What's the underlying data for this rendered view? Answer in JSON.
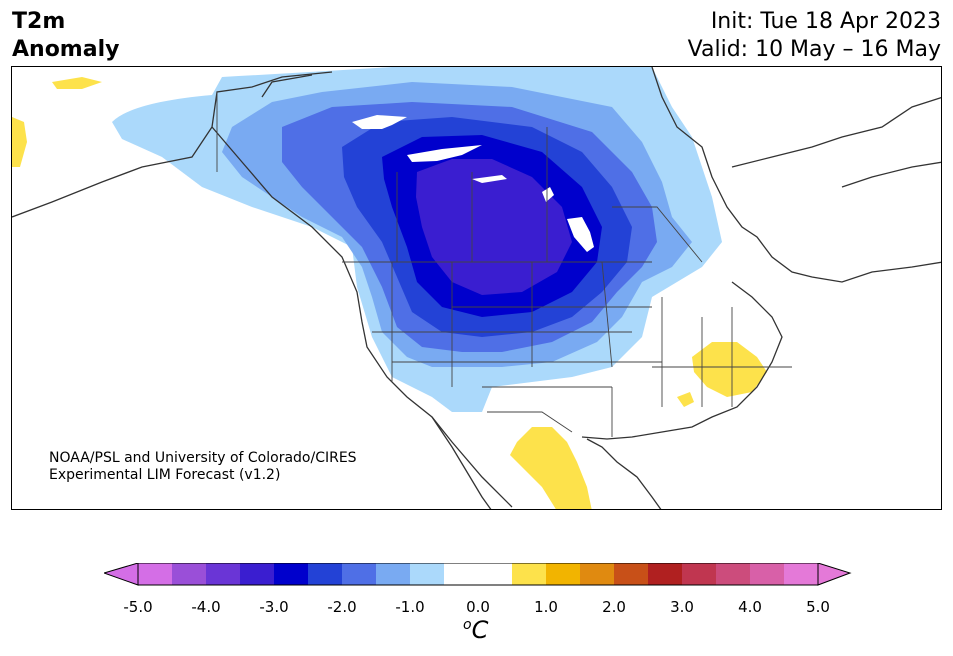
{
  "title": {
    "line1": "T2m",
    "line2": "Anomaly"
  },
  "header_right": {
    "init": "Init: Tue 18 Apr 2023",
    "valid": "Valid: 10 May – 16 May"
  },
  "credit": {
    "line1": "NOAA/PSL and University of Colorado/CIRES",
    "line2": "Experimental LIM Forecast (v1.2)"
  },
  "colorbar": {
    "unit_super": "o",
    "unit": "C",
    "ticks": [
      "-5.0",
      "-4.0",
      "-3.0",
      "-2.0",
      "-1.0",
      "0.0",
      "1.0",
      "2.0",
      "3.0",
      "4.0",
      "5.0"
    ],
    "colors": [
      "#d46ee6",
      "#9a4fd8",
      "#6a35d6",
      "#3a1ed0",
      "#0000cc",
      "#2342d6",
      "#4f6fe6",
      "#79aaf2",
      "#abd9fb",
      "#ffffff",
      "#ffffff",
      "#fde24b",
      "#f2b400",
      "#e08a10",
      "#c85018",
      "#b02020",
      "#c03650",
      "#cc4c7c",
      "#d860a8",
      "#e479d8"
    ],
    "extend_low": "#d46ee6",
    "extend_high": "#e479d8"
  },
  "map_colors": {
    "land": "#ffffff",
    "coast": "#333333",
    "minus_0_5": "#abd9fb",
    "minus_1_0": "#79aaf2",
    "minus_1_5": "#4f6fe6",
    "minus_2_0": "#2342d6",
    "minus_2_5": "#0000cc",
    "minus_3_0": "#3a1ed0",
    "plus_0_5": "#fde24b"
  }
}
